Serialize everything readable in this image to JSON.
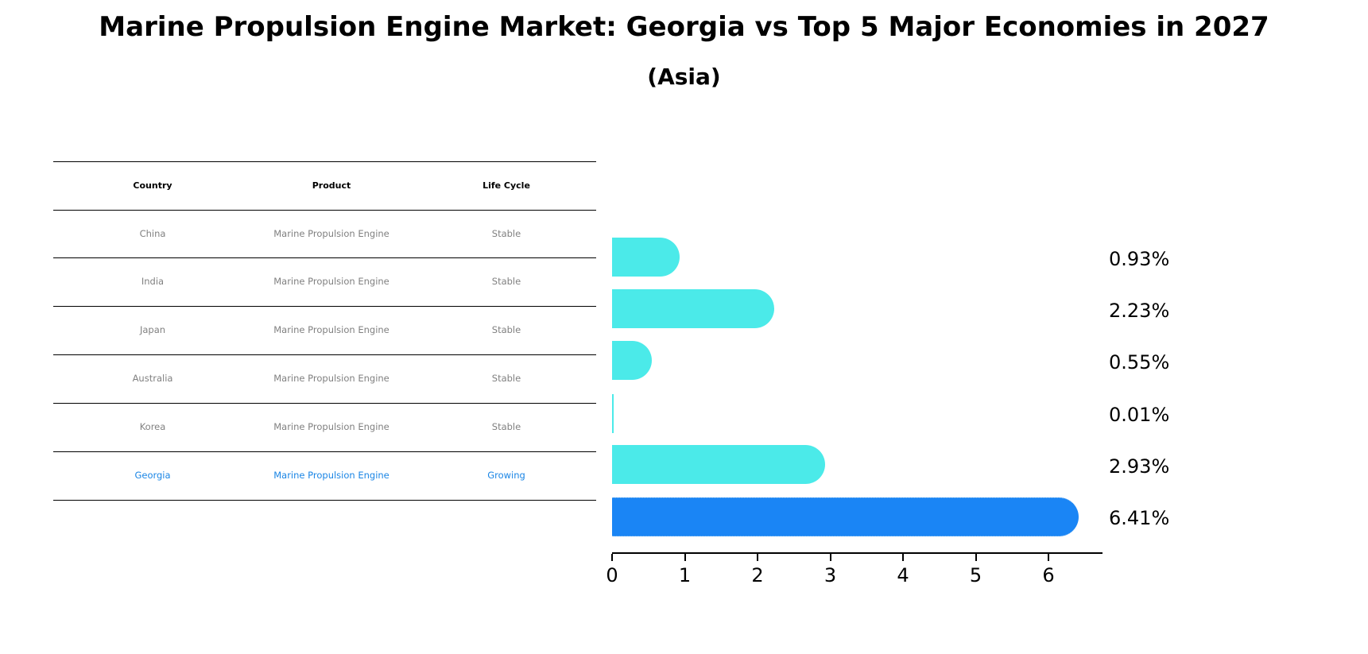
{
  "title": "Marine Propulsion Engine Market: Georgia vs Top 5 Major Economies in 2027",
  "subtitle": "(Asia)",
  "table": {
    "headers": [
      "Country",
      "Product",
      "Life Cycle"
    ],
    "rows": [
      [
        "China",
        "Marine Propulsion Engine",
        "Stable"
      ],
      [
        "India",
        "Marine Propulsion Engine",
        "Stable"
      ],
      [
        "Japan",
        "Marine Propulsion Engine",
        "Stable"
      ],
      [
        "Australia",
        "Marine Propulsion Engine",
        "Stable"
      ],
      [
        "Korea",
        "Marine Propulsion Engine",
        "Stable"
      ],
      [
        "Georgia",
        "Marine Propulsion Engine",
        "Growing"
      ]
    ]
  },
  "value_labels": [
    "0.93%",
    "2.23%",
    "0.55%",
    "0.01%",
    "2.93%",
    "6.41%"
  ],
  "axis": {
    "ticks": [
      "0",
      "1",
      "2",
      "3",
      "4",
      "5",
      "6"
    ]
  },
  "colors": {
    "bar": "#4beae9",
    "highlight": "#1a85f5",
    "highlight_text": "#1a85e5",
    "row_text": "#808080"
  },
  "chart_data": {
    "type": "bar",
    "orientation": "horizontal",
    "title": "Marine Propulsion Engine Market: Georgia vs Top 5 Major Economies in 2027",
    "subtitle": "(Asia)",
    "categories": [
      "China",
      "India",
      "Japan",
      "Australia",
      "Korea",
      "Georgia"
    ],
    "values": [
      0.93,
      2.23,
      0.55,
      0.01,
      2.93,
      6.41
    ],
    "unit": "%",
    "value_labels": [
      "0.93%",
      "2.23%",
      "0.55%",
      "0.01%",
      "2.93%",
      "6.41%"
    ],
    "highlight": "Georgia",
    "xlabel": "",
    "ylabel": "",
    "xlim": [
      0,
      6.7
    ],
    "xticks": [
      0,
      1,
      2,
      3,
      4,
      5,
      6
    ],
    "grid": false,
    "legend": null,
    "table": {
      "columns": [
        "Country",
        "Product",
        "Life Cycle"
      ],
      "rows": [
        [
          "China",
          "Marine Propulsion Engine",
          "Stable"
        ],
        [
          "India",
          "Marine Propulsion Engine",
          "Stable"
        ],
        [
          "Japan",
          "Marine Propulsion Engine",
          "Stable"
        ],
        [
          "Australia",
          "Marine Propulsion Engine",
          "Stable"
        ],
        [
          "Korea",
          "Marine Propulsion Engine",
          "Stable"
        ],
        [
          "Georgia",
          "Marine Propulsion Engine",
          "Growing"
        ]
      ]
    }
  }
}
